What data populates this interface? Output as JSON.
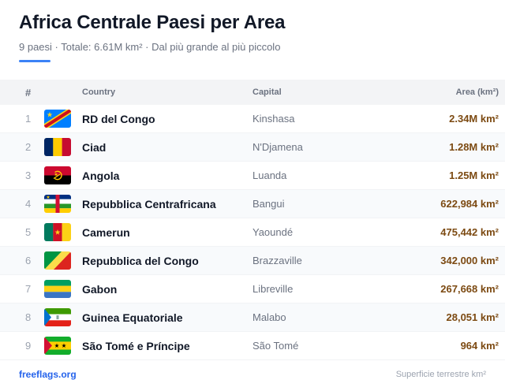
{
  "header": {
    "title": "Africa Centrale Paesi per Area",
    "subtitle": "9 paesi · Totale: 6.61M km² · Dal più grande al più piccolo",
    "accent_color": "#3b82f6"
  },
  "table": {
    "columns": {
      "num": "#",
      "country": "Country",
      "capital": "Capital",
      "area": "Area (km²)"
    },
    "rows": [
      {
        "num": "1",
        "flag": "flag-dr-congo-icon",
        "country": "RD del Congo",
        "capital": "Kinshasa",
        "area": "2.34M km²"
      },
      {
        "num": "2",
        "flag": "flag-chad-icon",
        "country": "Ciad",
        "capital": "N'Djamena",
        "area": "1.28M km²"
      },
      {
        "num": "3",
        "flag": "flag-angola-icon",
        "country": "Angola",
        "capital": "Luanda",
        "area": "1.25M km²"
      },
      {
        "num": "4",
        "flag": "flag-central-african-republic-icon",
        "country": "Repubblica Centrafricana",
        "capital": "Bangui",
        "area": "622,984 km²"
      },
      {
        "num": "5",
        "flag": "flag-cameroon-icon",
        "country": "Camerun",
        "capital": "Yaoundé",
        "area": "475,442 km²"
      },
      {
        "num": "6",
        "flag": "flag-republic-of-congo-icon",
        "country": "Repubblica del Congo",
        "capital": "Brazzaville",
        "area": "342,000 km²"
      },
      {
        "num": "7",
        "flag": "flag-gabon-icon",
        "country": "Gabon",
        "capital": "Libreville",
        "area": "267,668 km²"
      },
      {
        "num": "8",
        "flag": "flag-equatorial-guinea-icon",
        "country": "Guinea Equatoriale",
        "capital": "Malabo",
        "area": "28,051 km²"
      },
      {
        "num": "9",
        "flag": "flag-sao-tome-icon",
        "country": "São Tomé e Príncipe",
        "capital": "São Tomé",
        "area": "964 km²"
      }
    ]
  },
  "footer": {
    "link": "freeflags.org",
    "note": "Superficie terrestre km²"
  },
  "colors": {
    "area_text": "#7c4a12",
    "link": "#2563eb"
  }
}
